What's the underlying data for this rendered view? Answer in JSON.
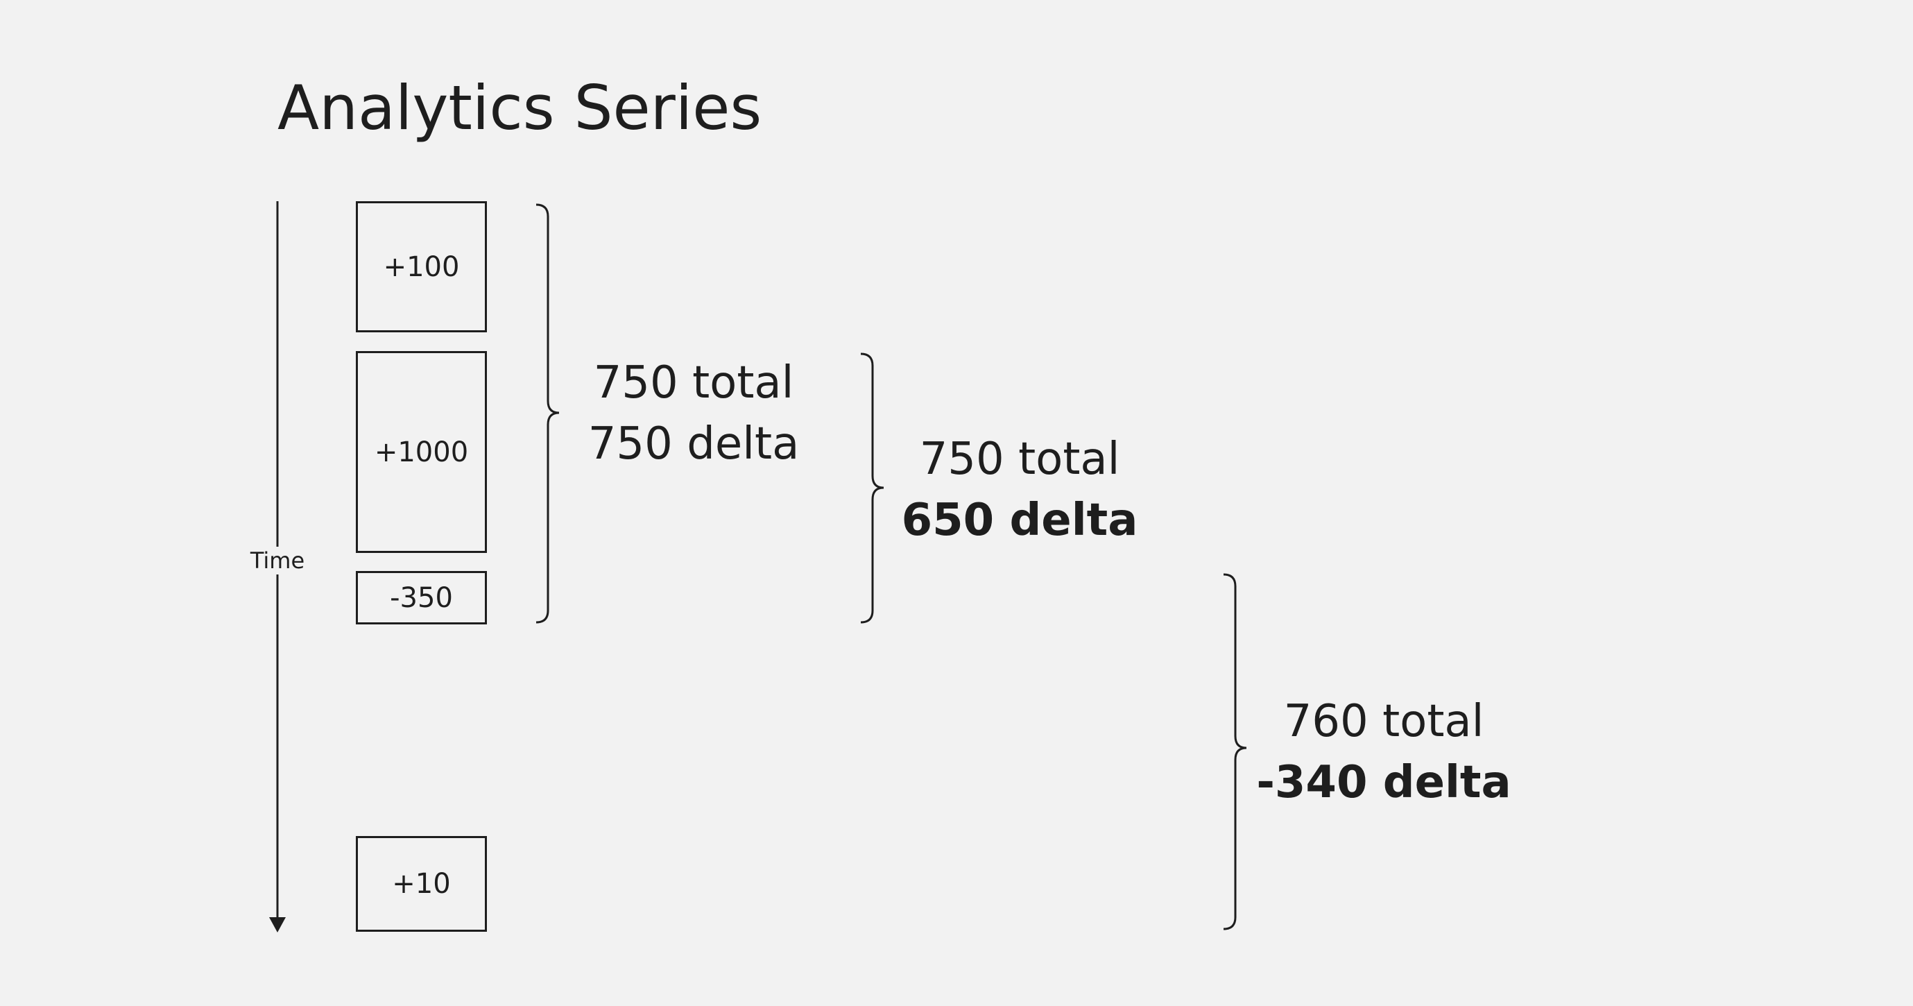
{
  "title": "Analytics Series",
  "axis": {
    "label": "Time",
    "direction": "down"
  },
  "events": [
    {
      "value": "+100"
    },
    {
      "value": "+1000"
    },
    {
      "value": "-350"
    },
    {
      "value": "+10"
    }
  ],
  "groups": [
    {
      "total": "750 total",
      "delta": "750 delta",
      "delta_bold": false
    },
    {
      "total": "750 total",
      "delta": "650 delta",
      "delta_bold": true
    },
    {
      "total": "760 total",
      "delta": "-340 delta",
      "delta_bold": true
    }
  ]
}
